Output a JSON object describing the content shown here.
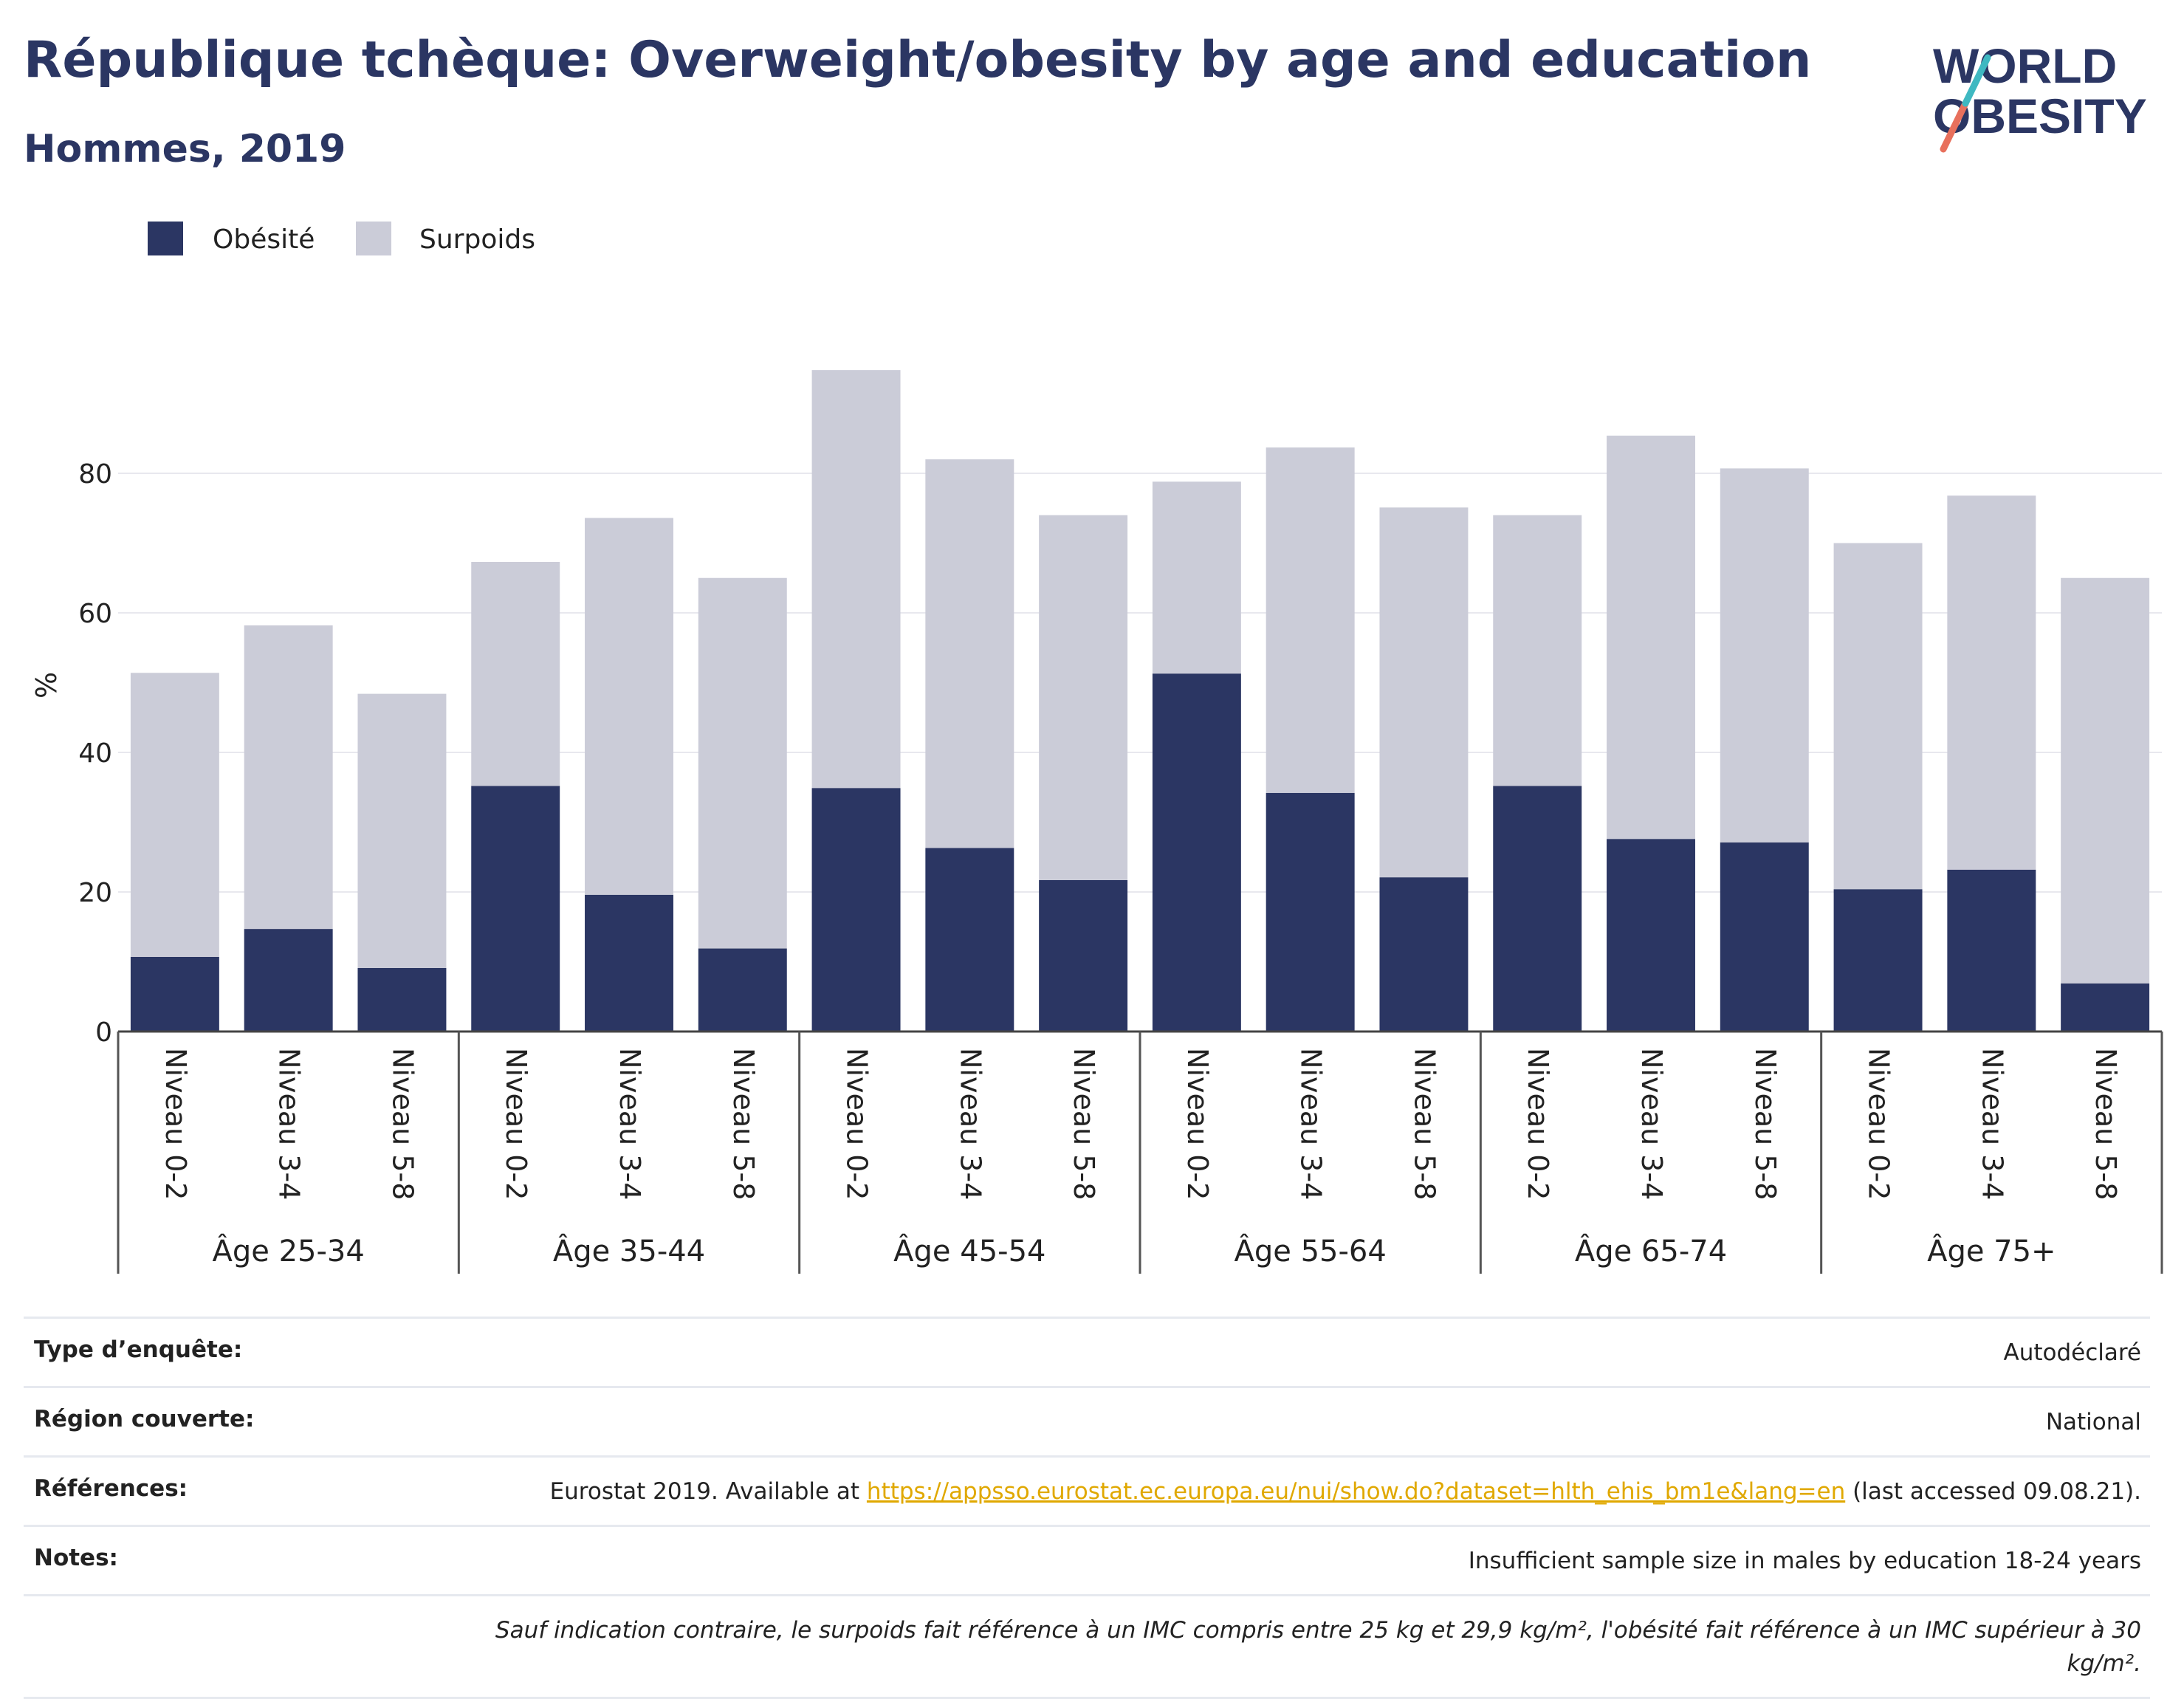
{
  "header": {
    "title": "République tchèque: Overweight/obesity by age and education",
    "subtitle": "Hommes, 2019"
  },
  "logo": {
    "line1": "WORLD",
    "line2": "OBESITY"
  },
  "colors": {
    "obesite": "#2b3663",
    "surpoids": "#cbccd8",
    "title": "#2b3663",
    "link": "#e0a800",
    "grid": "#e8e8ee"
  },
  "chart_data": {
    "type": "bar",
    "stacked": true,
    "ylabel": "%",
    "xlabel": "",
    "ylim": [
      0,
      100
    ],
    "yticks": [
      0,
      20,
      40,
      60,
      80
    ],
    "grid": true,
    "legend_position": "top-left",
    "groups": [
      "Âge 25-34",
      "Âge 35-44",
      "Âge 45-54",
      "Âge 55-64",
      "Âge 65-74",
      "Âge 75+"
    ],
    "levels": [
      "Niveau 0-2",
      "Niveau 3-4",
      "Niveau 5-8"
    ],
    "categories": [
      "Niveau 0-2",
      "Niveau 3-4",
      "Niveau 5-8",
      "Niveau 0-2",
      "Niveau 3-4",
      "Niveau 5-8",
      "Niveau 0-2",
      "Niveau 3-4",
      "Niveau 5-8",
      "Niveau 0-2",
      "Niveau 3-4",
      "Niveau 5-8",
      "Niveau 0-2",
      "Niveau 3-4",
      "Niveau 5-8",
      "Niveau 0-2",
      "Niveau 3-4",
      "Niveau 5-8"
    ],
    "series": [
      {
        "name": "Obésité",
        "values": [
          10.7,
          14.7,
          9.1,
          35.2,
          19.6,
          11.9,
          34.9,
          26.3,
          21.7,
          51.3,
          34.2,
          22.1,
          35.2,
          27.6,
          27.1,
          20.4,
          23.2,
          6.9
        ]
      },
      {
        "name": "Surpoids",
        "values": [
          40.7,
          43.5,
          39.3,
          32.1,
          54.0,
          53.1,
          59.9,
          55.7,
          52.3,
          27.5,
          49.5,
          53.0,
          38.8,
          57.8,
          53.6,
          49.6,
          53.6,
          58.1
        ]
      }
    ]
  },
  "info": {
    "survey_label": "Type d’enquête:",
    "survey_value": "Autodéclaré",
    "region_label": "Région couverte:",
    "region_value": "National",
    "refs_label": "Références:",
    "refs_prefix": "Eurostat 2019. Available at ",
    "refs_link": "https://appsso.eurostat.ec.europa.eu/nui/show.do?dataset=hlth_ehis_bm1e&lang=en",
    "refs_suffix": " (last accessed 09.08.21).",
    "notes_label": "Notes:",
    "notes_value": "Insufficient sample size in males by education 18-24 years",
    "footnote": "Sauf indication contraire, le surpoids fait référence à un IMC compris entre 25 kg et 29,9 kg/m², l'obésité fait référence à un IMC supérieur à 30 kg/m²."
  }
}
